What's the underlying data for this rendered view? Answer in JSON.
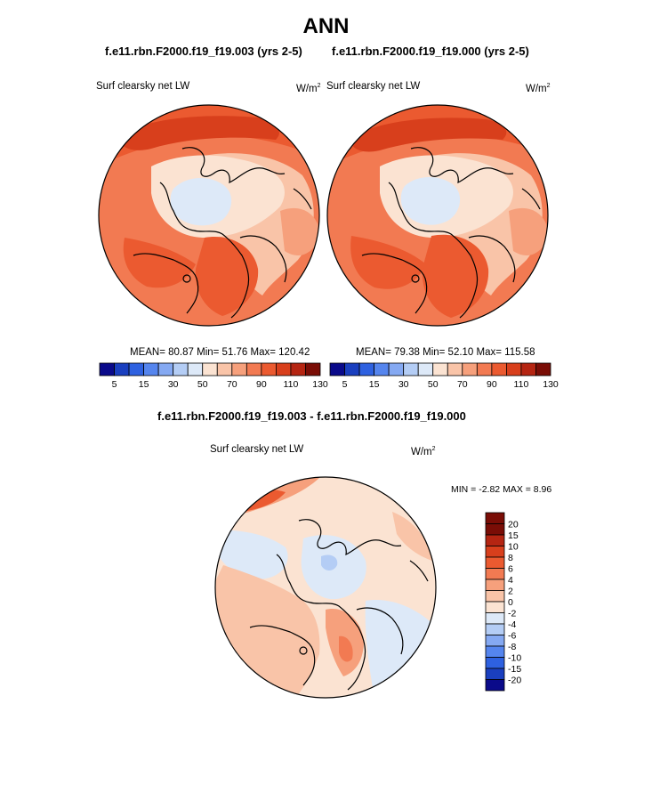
{
  "title": "ANN",
  "panels": [
    {
      "case": "f.e11.rbn.F2000.f19_f19.003 (yrs 2-5)",
      "field": "Surf clearsky net LW",
      "units": "W/m",
      "units_sup": "2",
      "stats": "MEAN=  80.87  Min=  51.76  Max= 120.42"
    },
    {
      "case": "f.e11.rbn.F2000.f19_f19.000 (yrs 2-5)",
      "field": "Surf clearsky net LW",
      "units": "W/m",
      "units_sup": "2",
      "stats": "MEAN=  79.38  Min=  52.10  Max= 115.58"
    }
  ],
  "diff": {
    "title": "f.e11.rbn.F2000.f19_f19.003 - f.e11.rbn.F2000.f19_f19.000",
    "field": "Surf clearsky net LW",
    "units": "W/m",
    "units_sup": "2",
    "minmax": "MIN =  -2.82 MAX =   8.96"
  },
  "chart_data": [
    {
      "type": "heatmap",
      "projection": "north polar stereographic",
      "field": "Surf clearsky net LW",
      "mean": 80.87,
      "min": 51.76,
      "max": 120.42,
      "colorbar_ticks": [
        "5",
        "15",
        "30",
        "50",
        "70",
        "90",
        "110",
        "130"
      ],
      "colors": [
        "#0a0a8a",
        "#1a3fbf",
        "#2e61e0",
        "#5585ee",
        "#85a9f2",
        "#b4cdf5",
        "#dde9f8",
        "#fbe3d2",
        "#f9c4a8",
        "#f6a07c",
        "#f27a52",
        "#eb5a30",
        "#d83f1c",
        "#b52512",
        "#7a0d06"
      ]
    },
    {
      "type": "heatmap",
      "projection": "north polar stereographic",
      "field": "Surf clearsky net LW",
      "mean": 79.38,
      "min": 52.1,
      "max": 115.58,
      "colorbar_ticks": [
        "5",
        "15",
        "30",
        "50",
        "70",
        "90",
        "110",
        "130"
      ]
    },
    {
      "type": "heatmap",
      "projection": "north polar stereographic",
      "field": "Surf clearsky net LW",
      "min": -2.82,
      "max": 8.96,
      "colorbar_ticks": [
        "20",
        "15",
        "10",
        "8",
        "6",
        "4",
        "2",
        "0",
        "-2",
        "-4",
        "-6",
        "-8",
        "-10",
        "-15",
        "-20"
      ],
      "colors": [
        "#7a0d06",
        "#b52512",
        "#d83f1c",
        "#eb5a30",
        "#f27a52",
        "#f6a07c",
        "#f9c4a8",
        "#fbe3d2",
        "#dde9f8",
        "#b4cdf5",
        "#85a9f2",
        "#5585ee",
        "#2e61e0",
        "#1a3fbf",
        "#0a0a8a"
      ]
    }
  ]
}
